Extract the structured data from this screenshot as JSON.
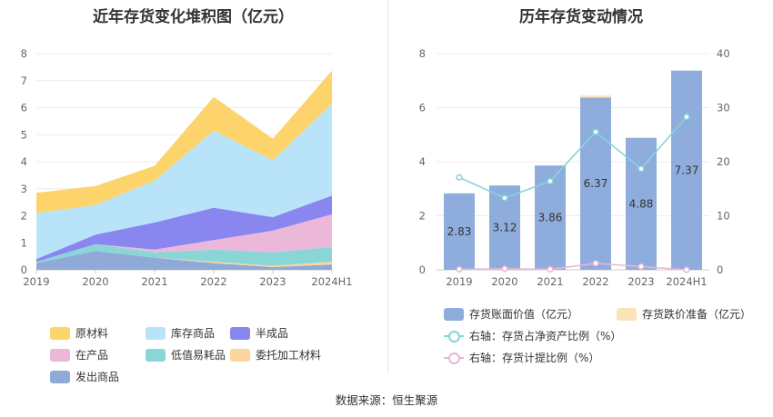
{
  "left_title": "近年存货变化堆积图（亿元）",
  "right_title": "历年存货变动情况",
  "source": "数据来源：恒生聚源",
  "chart_data": [
    {
      "type": "area",
      "title": "近年存货变化堆积图（亿元）",
      "categories": [
        "2019",
        "2020",
        "2021",
        "2022",
        "2023",
        "2024H1"
      ],
      "ylim": [
        0,
        8
      ],
      "yticks": [
        "0",
        "1",
        "2",
        "3",
        "4",
        "5",
        "6",
        "7",
        "8"
      ],
      "grid": true,
      "legend_position": "bottom",
      "series": [
        {
          "name": "发出商品",
          "color": "#8fa9d9",
          "values": [
            0.25,
            0.7,
            0.45,
            0.25,
            0.1,
            0.2
          ]
        },
        {
          "name": "委托加工材料",
          "color": "#fbd69a",
          "values": [
            0.0,
            0.0,
            0.0,
            0.05,
            0.05,
            0.1
          ]
        },
        {
          "name": "低值易耗品",
          "color": "#8ad6d6",
          "values": [
            0.05,
            0.25,
            0.2,
            0.45,
            0.5,
            0.55
          ]
        },
        {
          "name": "在产品",
          "color": "#ebb8da",
          "values": [
            0.0,
            0.0,
            0.1,
            0.35,
            0.8,
            1.2
          ]
        },
        {
          "name": "半成品",
          "color": "#8a86f0",
          "values": [
            0.1,
            0.35,
            1.0,
            1.2,
            0.5,
            0.7
          ]
        },
        {
          "name": "库存商品",
          "color": "#b9e3f8",
          "values": [
            1.7,
            1.1,
            1.55,
            2.85,
            2.1,
            3.4
          ]
        },
        {
          "name": "原材料",
          "color": "#fcd46b",
          "values": [
            0.75,
            0.7,
            0.55,
            1.25,
            0.8,
            1.22
          ]
        }
      ],
      "legend_order": [
        "原材料",
        "库存商品",
        "半成品",
        "在产品",
        "低值易耗品",
        "委托加工材料",
        "发出商品"
      ]
    },
    {
      "type": "bar",
      "title": "历年存货变动情况",
      "categories": [
        "2019",
        "2020",
        "2021",
        "2022",
        "2023",
        "2024H1"
      ],
      "ylim": [
        0,
        8
      ],
      "yticks_left": [
        "0",
        "2",
        "4",
        "6",
        "8"
      ],
      "y2lim": [
        0,
        40
      ],
      "yticks_right": [
        "0",
        "10",
        "20",
        "30",
        "40"
      ],
      "grid": true,
      "series": [
        {
          "name": "存货账面价值（亿元）",
          "color": "#8eaddc",
          "axis": "left",
          "kind": "bar",
          "values": [
            2.83,
            3.12,
            3.86,
            6.37,
            4.88,
            7.37
          ],
          "labels": [
            "2.83",
            "3.12",
            "3.86",
            "6.37",
            "4.88",
            "7.37"
          ]
        },
        {
          "name": "存货跌价准备（亿元）",
          "color": "#fbe3b8",
          "axis": "left",
          "kind": "bar",
          "values": [
            0,
            0,
            0,
            0.08,
            0.03,
            0
          ]
        },
        {
          "name": "右轴：存货占净资产比例（%）",
          "color": "#86d4d9",
          "axis": "right",
          "kind": "line",
          "values": [
            17.1,
            13.3,
            16.4,
            25.5,
            18.7,
            28.3
          ]
        },
        {
          "name": "右轴：存货计提比例（%）",
          "color": "#e9b5da",
          "axis": "right",
          "kind": "line",
          "values": [
            0.1,
            0.2,
            0.1,
            1.2,
            0.6,
            0.0
          ]
        }
      ]
    }
  ]
}
